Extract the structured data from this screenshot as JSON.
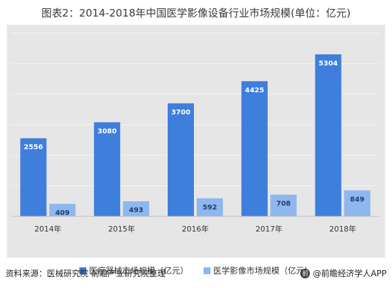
{
  "title": "图表2：2014-2018年中国医学影像设备行业市场规模(单位：亿元)",
  "footer": {
    "source": "资料来源：医械研究院 前瞻产业研究院整理",
    "brand": "@前瞻经济学人APP"
  },
  "chart_data": {
    "type": "bar",
    "categories": [
      "2014年",
      "2015年",
      "2016年",
      "2017年",
      "2018年"
    ],
    "series": [
      {
        "name": "医疗器械市场规模（亿元）",
        "values": [
          2556,
          3080,
          3700,
          4425,
          5304
        ],
        "color": "#3e7fdc"
      },
      {
        "name": "医学影像市场规模（亿元）",
        "values": [
          409,
          493,
          592,
          708,
          849
        ],
        "color": "#8db7ee"
      }
    ],
    "ylim": [
      0,
      6000
    ],
    "grid": true,
    "legend_position": "bottom"
  }
}
